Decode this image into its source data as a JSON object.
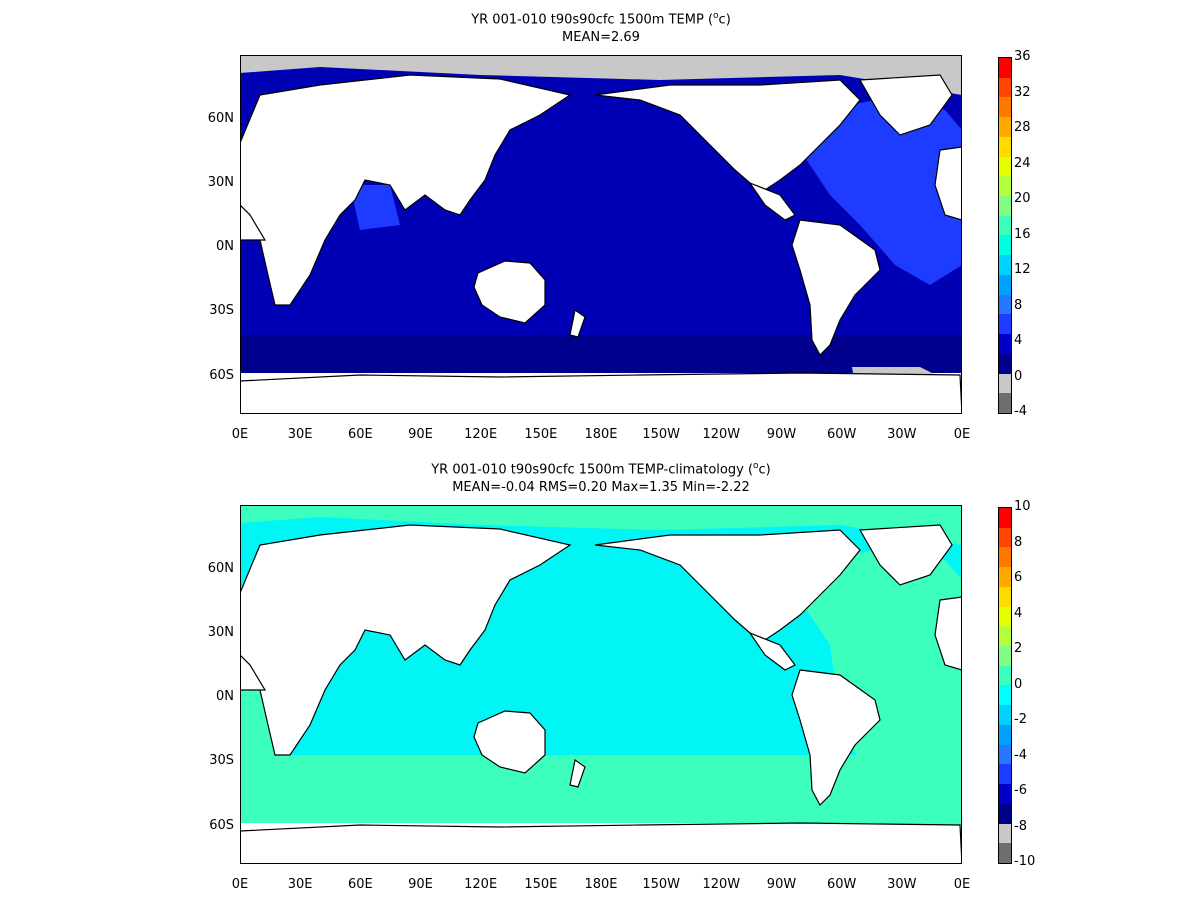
{
  "chart_data": [
    {
      "type": "heatmap",
      "title": "YR 001-010 t90s90cfc 1500m TEMP",
      "title_unit_sup": "o",
      "title_unit_tail": "c)",
      "title_unit_open": "(",
      "subtitle": "MEAN=2.69",
      "x_tick_labels": [
        "0E",
        "30E",
        "60E",
        "90E",
        "120E",
        "150E",
        "180E",
        "150W",
        "120W",
        "90W",
        "60W",
        "30W",
        "0E"
      ],
      "y_tick_labels": [
        "60N",
        "30N",
        "0N",
        "30S",
        "60S"
      ],
      "xlim": [
        0,
        360
      ],
      "ylim": [
        -78,
        90
      ],
      "colorbar": {
        "min": -4,
        "max": 36,
        "tick_labels": [
          "36",
          "32",
          "28",
          "24",
          "20",
          "16",
          "12",
          "8",
          "4",
          "0",
          "-4"
        ],
        "colors": [
          "#6e6e6e",
          "#c8c8c8",
          "#00008c",
          "#0000c8",
          "#1e3cff",
          "#2878ff",
          "#00a0ff",
          "#00d2ff",
          "#00ffe1",
          "#3cffbe",
          "#82ff82",
          "#b4ff3c",
          "#e6ff00",
          "#ffdc00",
          "#ffaa00",
          "#ff7800",
          "#ff4600",
          "#ff0000"
        ]
      },
      "ocean_fill": "#0000b4",
      "southern_band_fill": "#00008c",
      "atlantic_fill": "#1e3cff",
      "ice_fill": "#c8c8c8"
    },
    {
      "type": "heatmap",
      "title": "YR 001-010 t90s90cfc 1500m TEMP-climatology",
      "title_unit_sup": "o",
      "title_unit_tail": "c)",
      "title_unit_open": "(",
      "subtitle": "MEAN=-0.04   RMS=0.20   Max=1.35   Min=-2.22",
      "x_tick_labels": [
        "0E",
        "30E",
        "60E",
        "90E",
        "120E",
        "150E",
        "180E",
        "150W",
        "120W",
        "90W",
        "60W",
        "30W",
        "0E"
      ],
      "y_tick_labels": [
        "60N",
        "30N",
        "0N",
        "30S",
        "60S"
      ],
      "xlim": [
        0,
        360
      ],
      "ylim": [
        -78,
        90
      ],
      "colorbar": {
        "min": -10,
        "max": 10,
        "tick_labels": [
          "10",
          "8",
          "6",
          "4",
          "2",
          "0",
          "-2",
          "-4",
          "-6",
          "-8",
          "-10"
        ],
        "colors": [
          "#6e6e6e",
          "#c8c8c8",
          "#00008c",
          "#0000c8",
          "#1e3cff",
          "#2878ff",
          "#00a0ff",
          "#00d2ff",
          "#00ffff",
          "#3cffbe",
          "#82ff82",
          "#b4ff3c",
          "#e6ff00",
          "#ffdc00",
          "#ffaa00",
          "#ff7800",
          "#ff4600",
          "#ff0000"
        ]
      },
      "ocean_fill": "#00f5f5",
      "southern_band_fill": "#3cffbe",
      "atlantic_fill": "#3cffbe",
      "ice_fill": "#3cffbe"
    }
  ]
}
